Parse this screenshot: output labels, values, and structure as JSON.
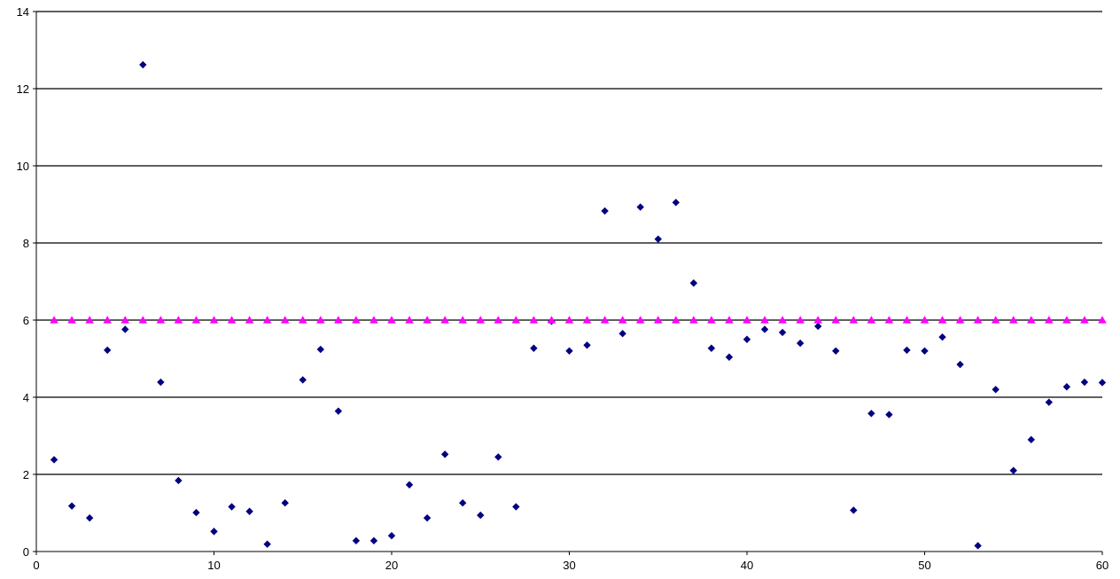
{
  "chart_data": {
    "type": "scatter",
    "title": "",
    "xlabel": "",
    "ylabel": "",
    "xlim": [
      0,
      60
    ],
    "ylim": [
      0,
      14
    ],
    "x_ticks": [
      0,
      10,
      20,
      30,
      40,
      50,
      60
    ],
    "y_ticks": [
      0,
      2,
      4,
      6,
      8,
      10,
      12,
      14
    ],
    "x_tick_labels": [
      "0",
      "10",
      "20",
      "30",
      "40",
      "50",
      "60"
    ],
    "y_tick_labels": [
      "0",
      "2",
      "4",
      "6",
      "8",
      "10",
      "12",
      "14"
    ],
    "grid": "horizontal",
    "legend": "none",
    "series": [
      {
        "marker": "diamond",
        "color": "#000080",
        "x": [
          1,
          2,
          3,
          4,
          5,
          6,
          7,
          8,
          9,
          10,
          11,
          12,
          13,
          14,
          15,
          16,
          17,
          18,
          19,
          20,
          21,
          22,
          23,
          24,
          25,
          26,
          27,
          28,
          29,
          30,
          31,
          32,
          33,
          34,
          35,
          36,
          37,
          38,
          39,
          40,
          41,
          42,
          43,
          44,
          45,
          46,
          47,
          48,
          49,
          50,
          51,
          52,
          53,
          54,
          55,
          56,
          57,
          58,
          59,
          60
        ],
        "y": [
          2.38,
          1.18,
          0.87,
          5.22,
          5.76,
          12.62,
          4.39,
          1.84,
          1.01,
          0.52,
          1.16,
          1.04,
          0.19,
          1.26,
          4.45,
          5.24,
          3.64,
          0.28,
          0.28,
          0.41,
          1.73,
          0.87,
          2.52,
          1.26,
          0.94,
          2.45,
          1.16,
          5.27,
          5.97,
          5.2,
          5.35,
          8.83,
          5.65,
          8.93,
          8.1,
          9.05,
          6.96,
          5.27,
          5.04,
          5.5,
          5.76,
          5.68,
          5.4,
          5.84,
          5.2,
          1.07,
          3.58,
          3.55,
          5.22,
          5.2,
          5.56,
          4.85,
          0.15,
          4.2,
          2.1,
          2.9,
          3.87,
          4.27,
          4.39,
          4.38
        ]
      },
      {
        "marker": "triangle",
        "color": "#ff00ff",
        "x": [
          1,
          2,
          3,
          4,
          5,
          6,
          7,
          8,
          9,
          10,
          11,
          12,
          13,
          14,
          15,
          16,
          17,
          18,
          19,
          20,
          21,
          22,
          23,
          24,
          25,
          26,
          27,
          28,
          29,
          30,
          31,
          32,
          33,
          34,
          35,
          36,
          37,
          38,
          39,
          40,
          41,
          42,
          43,
          44,
          45,
          46,
          47,
          48,
          49,
          50,
          51,
          52,
          53,
          54,
          55,
          56,
          57,
          58,
          59,
          60
        ],
        "y": [
          6,
          6,
          6,
          6,
          6,
          6,
          6,
          6,
          6,
          6,
          6,
          6,
          6,
          6,
          6,
          6,
          6,
          6,
          6,
          6,
          6,
          6,
          6,
          6,
          6,
          6,
          6,
          6,
          6,
          6,
          6,
          6,
          6,
          6,
          6,
          6,
          6,
          6,
          6,
          6,
          6,
          6,
          6,
          6,
          6,
          6,
          6,
          6,
          6,
          6,
          6,
          6,
          6,
          6,
          6,
          6,
          6,
          6,
          6,
          6
        ]
      }
    ]
  }
}
